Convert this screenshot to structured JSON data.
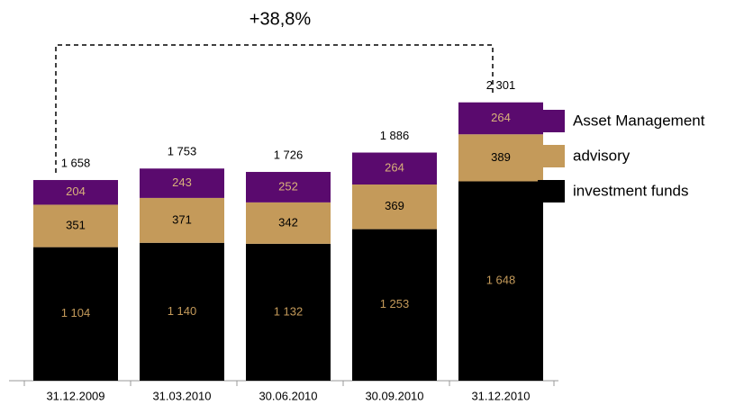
{
  "chart_data": {
    "type": "stacked_bar",
    "annotation": "+38,8%",
    "categories": [
      "31.12.2009",
      "31.03.2010",
      "30.06.2010",
      "30.09.2010",
      "31.12.2010"
    ],
    "series": [
      {
        "name": "investment funds",
        "color": "#000000",
        "label_color": "#c49a5a",
        "values": [
          1104,
          1140,
          1132,
          1253,
          1648
        ],
        "value_labels": [
          "1 104",
          "1 140",
          "1 132",
          "1 253",
          "1 648"
        ]
      },
      {
        "name": "advisory",
        "color": "#c49a5a",
        "label_color": "#000000",
        "values": [
          351,
          371,
          342,
          369,
          389
        ]
      },
      {
        "name": "Asset Management",
        "color": "#5a0a6e",
        "label_color": "#d9b27a",
        "values": [
          204,
          243,
          252,
          264,
          264
        ]
      }
    ],
    "totals": [
      1658,
      1753,
      1726,
      1886,
      2301
    ],
    "total_labels": [
      "1 658",
      "1 753",
      "1 726",
      "1 886",
      "2 301"
    ],
    "ylim": [
      0,
      2500
    ]
  }
}
